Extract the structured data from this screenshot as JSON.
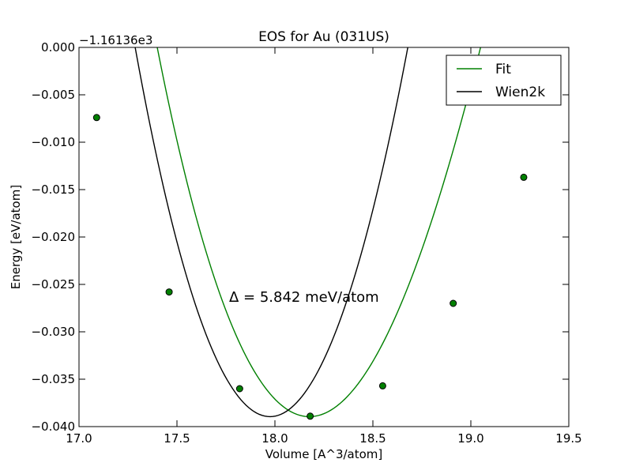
{
  "chart_data": {
    "type": "line",
    "title": "EOS for Au (031US)",
    "xlabel": "Volume [A^3/atom]",
    "ylabel": "Energy [eV/atom]",
    "offset_label": "−1.16136e3",
    "annotation": "Δ = 5.842 meV/atom",
    "xlim": [
      17.0,
      19.5
    ],
    "ylim": [
      -0.04,
      0.0
    ],
    "x_ticks": [
      17.0,
      17.5,
      18.0,
      18.5,
      19.0,
      19.5
    ],
    "x_tick_labels": [
      "17.0",
      "17.5",
      "18.0",
      "18.5",
      "19.0",
      "19.5"
    ],
    "y_ticks": [
      0.0,
      -0.005,
      -0.01,
      -0.015,
      -0.02,
      -0.025,
      -0.03,
      -0.035,
      -0.04
    ],
    "y_tick_labels": [
      "0.000",
      "−0.005",
      "−0.010",
      "−0.015",
      "−0.020",
      "−0.025",
      "−0.030",
      "−0.035",
      "−0.040"
    ],
    "legend_position": "top-right",
    "grid": false,
    "series": [
      {
        "name": "Fit",
        "color": "#008000",
        "style": "line-with-markers",
        "points": [
          {
            "x": 17.09,
            "y": -0.0074
          },
          {
            "x": 17.46,
            "y": -0.0258
          },
          {
            "x": 17.82,
            "y": -0.036
          },
          {
            "x": 18.18,
            "y": -0.0389
          },
          {
            "x": 18.55,
            "y": -0.0357
          },
          {
            "x": 18.91,
            "y": -0.027
          },
          {
            "x": 19.27,
            "y": -0.0137
          }
        ],
        "curve": {
          "v0": 18.176,
          "e0": -0.03895,
          "a": 0.0582,
          "b": -0.0082
        }
      },
      {
        "name": "Wien2k",
        "color": "#000000",
        "style": "line",
        "curve": {
          "v0": 17.975,
          "e0": -0.03895,
          "a": 0.0805,
          "b": -0.0025
        },
        "x_range": [
          17.09,
          19.27
        ]
      }
    ]
  }
}
